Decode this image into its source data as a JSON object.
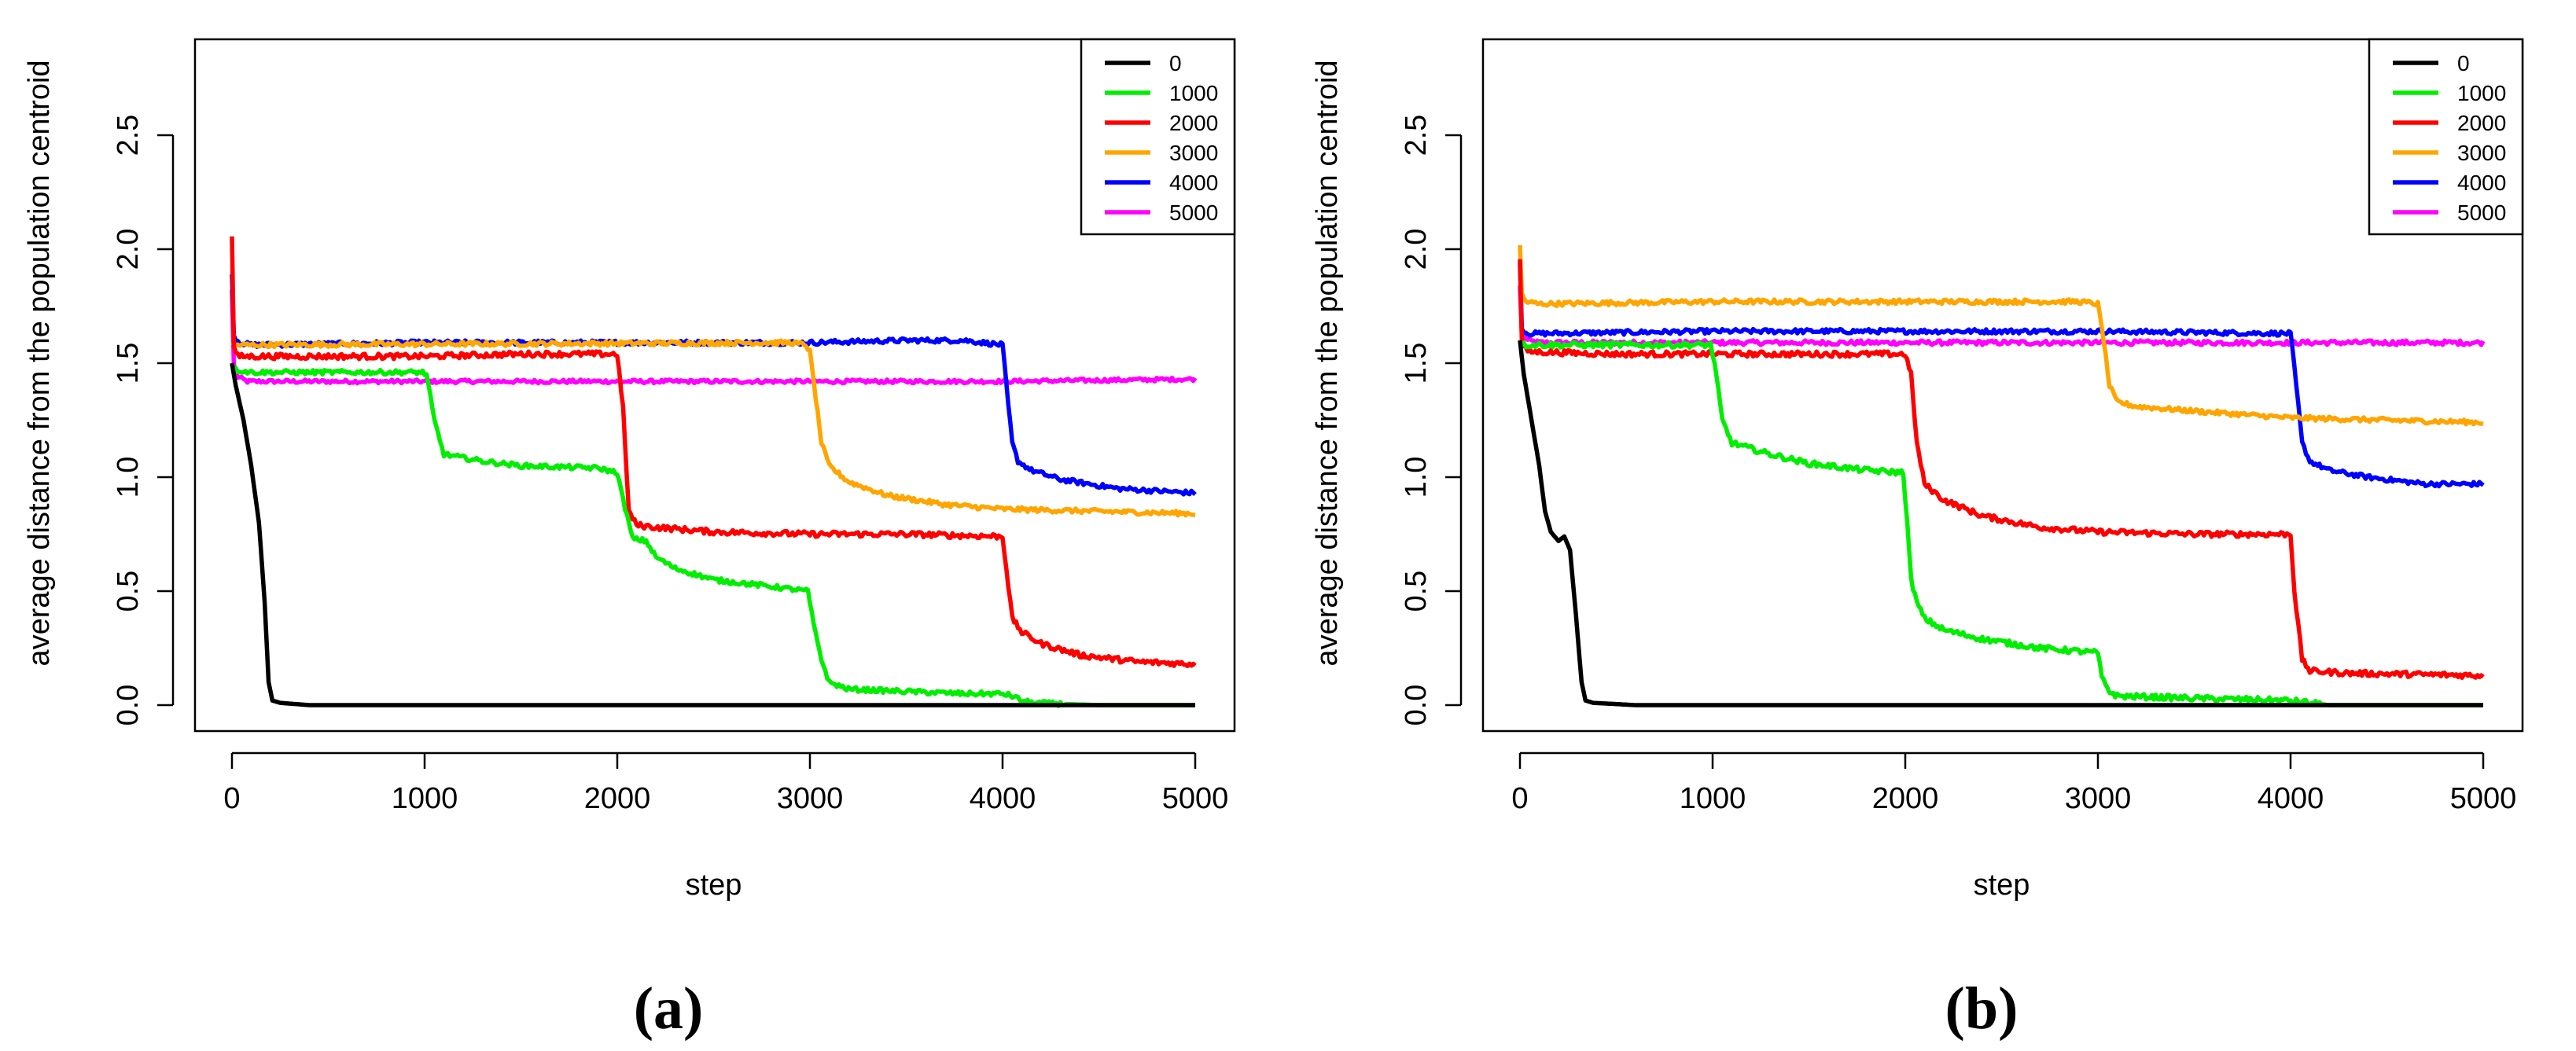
{
  "figure": {
    "colors": {
      "black": "#000000",
      "green": "#00ee00",
      "red": "#ff0000",
      "orange": "#ffa500",
      "blue": "#0000ff",
      "magenta": "#ff00ff"
    }
  },
  "chart_data": [
    {
      "type": "line",
      "panel_label": "(a)",
      "title": "",
      "xlabel": "step",
      "ylabel": "average distance from the population centroid",
      "xlim": [
        0,
        5000
      ],
      "ylim": [
        0,
        3.0
      ],
      "xticks": [
        0,
        1000,
        2000,
        3000,
        4000,
        5000
      ],
      "xtick_labels": [
        "0",
        "1000",
        "2000",
        "3000",
        "4000",
        "5000"
      ],
      "yticks": [
        0,
        0.5,
        1.0,
        1.5,
        2.0,
        2.5
      ],
      "ytick_labels": [
        "0.0",
        "0.5",
        "1.0",
        "1.5",
        "2.0",
        "2.5"
      ],
      "legend_position": "top-right",
      "grid": false,
      "series": [
        {
          "name": "0",
          "color": "#000000",
          "noise": 0.0,
          "x": [
            0,
            20,
            60,
            100,
            140,
            170,
            190,
            210,
            250,
            400,
            5000
          ],
          "y": [
            1.5,
            1.4,
            1.25,
            1.05,
            0.8,
            0.45,
            0.1,
            0.02,
            0.01,
            0.0,
            0.0
          ]
        },
        {
          "name": "1000",
          "color": "#00ee00",
          "noise": 0.01,
          "x": [
            0,
            20,
            100,
            500,
            990,
            1010,
            1050,
            1100,
            1300,
            1500,
            1900,
            2000,
            2030,
            2080,
            2150,
            2200,
            2300,
            2500,
            2800,
            2990,
            3020,
            3060,
            3100,
            3200,
            3500,
            3800,
            4000,
            4050,
            4100,
            4150,
            4500,
            5000
          ],
          "y": [
            1.5,
            1.47,
            1.46,
            1.46,
            1.46,
            1.45,
            1.25,
            1.1,
            1.07,
            1.05,
            1.04,
            1.02,
            0.9,
            0.73,
            0.72,
            0.65,
            0.6,
            0.55,
            0.52,
            0.5,
            0.35,
            0.2,
            0.1,
            0.07,
            0.06,
            0.05,
            0.05,
            0.04,
            0.02,
            0.01,
            0.0,
            0.0
          ]
        },
        {
          "name": "2000",
          "color": "#ff0000",
          "noise": 0.012,
          "x": [
            0,
            10,
            25,
            60,
            500,
            1000,
            1500,
            2000,
            2030,
            2060,
            2100,
            2200,
            2500,
            3000,
            3500,
            4000,
            4020,
            4050,
            4100,
            4200,
            4400,
            4700,
            5000
          ],
          "y": [
            2.05,
            1.58,
            1.53,
            1.53,
            1.53,
            1.53,
            1.54,
            1.54,
            1.3,
            0.85,
            0.79,
            0.78,
            0.76,
            0.75,
            0.75,
            0.74,
            0.6,
            0.38,
            0.32,
            0.27,
            0.22,
            0.19,
            0.18
          ]
        },
        {
          "name": "3000",
          "color": "#ffa500",
          "noise": 0.01,
          "x": [
            0,
            2900,
            2980,
            3000,
            3030,
            3060,
            3100,
            3200,
            3400,
            3700,
            4000,
            4500,
            5000
          ],
          "y": [
            1.58,
            1.59,
            1.58,
            1.55,
            1.35,
            1.15,
            1.05,
            0.98,
            0.92,
            0.88,
            0.86,
            0.85,
            0.84
          ]
        },
        {
          "name": "4000",
          "color": "#0000ff",
          "noise": 0.01,
          "x": [
            0,
            10,
            40,
            100,
            1000,
            2000,
            3000,
            3500,
            3800,
            4000,
            4020,
            4050,
            4080,
            4150,
            4300,
            4600,
            5000
          ],
          "y": [
            1.9,
            1.62,
            1.59,
            1.58,
            1.59,
            1.59,
            1.59,
            1.6,
            1.6,
            1.58,
            1.4,
            1.15,
            1.07,
            1.03,
            0.99,
            0.95,
            0.93
          ]
        },
        {
          "name": "5000",
          "color": "#ff00ff",
          "noise": 0.008,
          "x": [
            0,
            10,
            30,
            80,
            1000,
            2000,
            3000,
            4000,
            5000
          ],
          "y": [
            1.83,
            1.5,
            1.44,
            1.42,
            1.42,
            1.42,
            1.42,
            1.42,
            1.43
          ]
        }
      ]
    },
    {
      "type": "line",
      "panel_label": "(b)",
      "title": "",
      "xlabel": "step",
      "ylabel": "average distance from the population centroid",
      "xlim": [
        0,
        5000
      ],
      "ylim": [
        0,
        3.0
      ],
      "xticks": [
        0,
        1000,
        2000,
        3000,
        4000,
        5000
      ],
      "xtick_labels": [
        "0",
        "1000",
        "2000",
        "3000",
        "4000",
        "5000"
      ],
      "yticks": [
        0,
        0.5,
        1.0,
        1.5,
        2.0,
        2.5
      ],
      "ytick_labels": [
        "0.0",
        "0.5",
        "1.0",
        "1.5",
        "2.0",
        "2.5"
      ],
      "legend_position": "top-right",
      "grid": false,
      "series": [
        {
          "name": "0",
          "color": "#000000",
          "noise": 0.0,
          "x": [
            0,
            20,
            60,
            100,
            130,
            160,
            200,
            230,
            260,
            290,
            320,
            340,
            380,
            600,
            5000
          ],
          "y": [
            1.6,
            1.45,
            1.25,
            1.05,
            0.85,
            0.76,
            0.72,
            0.74,
            0.68,
            0.4,
            0.1,
            0.02,
            0.01,
            0.0,
            0.0
          ]
        },
        {
          "name": "1000",
          "color": "#00ee00",
          "noise": 0.012,
          "x": [
            0,
            20,
            500,
            990,
            1010,
            1050,
            1100,
            1300,
            1500,
            1800,
            1990,
            2010,
            2030,
            2060,
            2100,
            2200,
            2400,
            2700,
            3000,
            3020,
            3060,
            3100,
            3500,
            4000,
            4200,
            5000
          ],
          "y": [
            1.6,
            1.58,
            1.58,
            1.58,
            1.5,
            1.25,
            1.15,
            1.1,
            1.06,
            1.03,
            1.02,
            0.8,
            0.55,
            0.45,
            0.38,
            0.33,
            0.29,
            0.25,
            0.23,
            0.12,
            0.06,
            0.04,
            0.03,
            0.02,
            0.0,
            0.0
          ]
        },
        {
          "name": "2000",
          "color": "#ff0000",
          "noise": 0.012,
          "x": [
            0,
            10,
            25,
            60,
            500,
            1000,
            1500,
            2000,
            2030,
            2060,
            2100,
            2200,
            2400,
            2700,
            3000,
            3500,
            4000,
            4020,
            4060,
            4100,
            4300,
            5000
          ],
          "y": [
            1.95,
            1.6,
            1.56,
            1.55,
            1.54,
            1.54,
            1.54,
            1.54,
            1.45,
            1.15,
            0.97,
            0.9,
            0.83,
            0.78,
            0.76,
            0.75,
            0.75,
            0.5,
            0.2,
            0.15,
            0.14,
            0.13
          ]
        },
        {
          "name": "3000",
          "color": "#ffa500",
          "noise": 0.01,
          "x": [
            0,
            10,
            30,
            100,
            1000,
            2000,
            2900,
            3000,
            3030,
            3060,
            3100,
            3200,
            3500,
            4000,
            4500,
            5000
          ],
          "y": [
            2.02,
            1.8,
            1.77,
            1.76,
            1.77,
            1.77,
            1.77,
            1.76,
            1.6,
            1.4,
            1.33,
            1.31,
            1.29,
            1.26,
            1.25,
            1.24
          ]
        },
        {
          "name": "4000",
          "color": "#0000ff",
          "noise": 0.01,
          "x": [
            0,
            10,
            40,
            100,
            1000,
            2000,
            3000,
            4000,
            4030,
            4060,
            4100,
            4200,
            4400,
            4700,
            5000
          ],
          "y": [
            1.95,
            1.65,
            1.63,
            1.63,
            1.64,
            1.64,
            1.64,
            1.63,
            1.4,
            1.15,
            1.07,
            1.03,
            1.0,
            0.97,
            0.97
          ]
        },
        {
          "name": "5000",
          "color": "#ff00ff",
          "noise": 0.01,
          "x": [
            0,
            10,
            40,
            100,
            1000,
            2000,
            3000,
            4000,
            5000
          ],
          "y": [
            1.85,
            1.63,
            1.6,
            1.59,
            1.59,
            1.59,
            1.59,
            1.59,
            1.59
          ]
        }
      ]
    }
  ]
}
